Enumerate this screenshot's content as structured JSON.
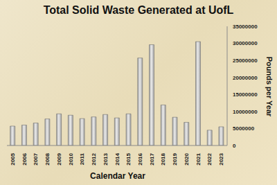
{
  "chart_data": {
    "type": "bar",
    "title": "Total Solid Waste Generated at UofL",
    "x_label": "Calendar Year",
    "y_label": "Pounds per Year",
    "categories": [
      "2005",
      "2006",
      "2007",
      "2008",
      "2009",
      "2010",
      "2011",
      "2012",
      "2013",
      "2014",
      "2015",
      "2016",
      "2017",
      "2018",
      "2019",
      "2020",
      "2021",
      "2022",
      "2023"
    ],
    "values": [
      5700000,
      6000000,
      6600000,
      7800000,
      9300000,
      8900000,
      7900000,
      8400000,
      9100000,
      8100000,
      9300000,
      25700000,
      29600000,
      11900000,
      8300000,
      6800000,
      30500000,
      4500000,
      5500000
    ],
    "color": "#9e9e9e",
    "ylim": [
      0,
      35000000
    ],
    "yticks": [
      0,
      5000000,
      10000000,
      15000000,
      20000000,
      25000000,
      30000000,
      35000000
    ],
    "grid": false
  }
}
